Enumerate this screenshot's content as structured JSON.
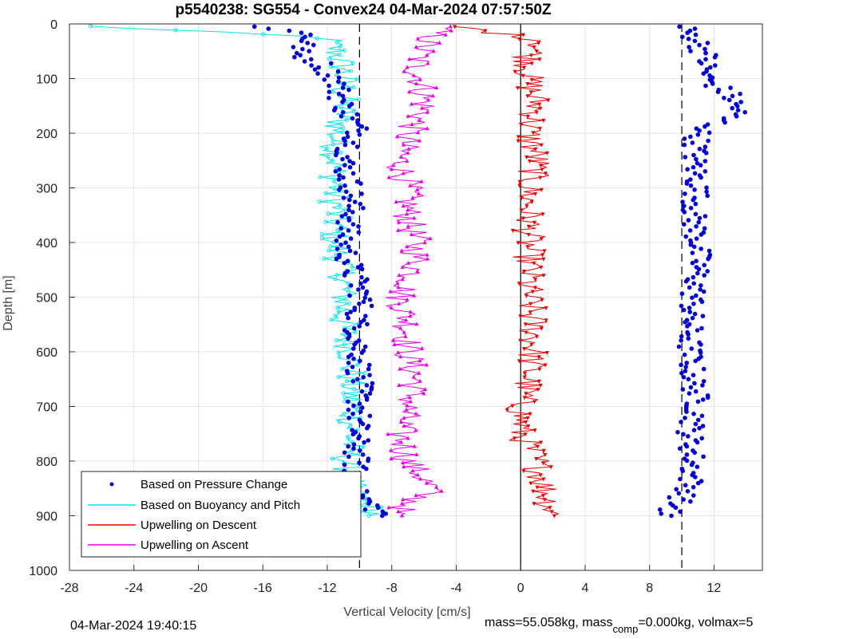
{
  "page": {
    "timestamp": "04-Mar-2024 19:40:15",
    "mass_prefix": "mass=55.058kg, mass",
    "mass_sub": "comp",
    "mass_suffix": "=0.000kg, volmax=5"
  },
  "chart_data": {
    "type": "line",
    "title": "p5540238: SG554 - Convex24 04-Mar-2024 07:57:50Z",
    "xlabel": "Vertical Velocity [cm/s]",
    "ylabel": "Depth [m]",
    "xlim": [
      -28,
      15
    ],
    "ylim": [
      0,
      1000
    ],
    "y_reversed": true,
    "grid": true,
    "xticks": [
      -28,
      -24,
      -20,
      -16,
      -12,
      -8,
      -4,
      0,
      4,
      8,
      12
    ],
    "yticks": [
      0,
      100,
      200,
      300,
      400,
      500,
      600,
      700,
      800,
      900,
      1000
    ],
    "legend_position": "bottom-left",
    "legend": [
      {
        "label": "Based on Pressure Change",
        "color": "#0000dd",
        "style": "dot"
      },
      {
        "label": "Based on Buoyancy and Pitch",
        "color": "#00e5ee",
        "style": "line"
      },
      {
        "label": "Upwelling on Descent",
        "color": "#ee0000",
        "style": "line"
      },
      {
        "label": "Upwelling on Ascent",
        "color": "#ee00ee",
        "style": "line"
      }
    ],
    "reference_lines": [
      {
        "x": -10,
        "style": "dashed"
      },
      {
        "x": 0,
        "style": "solid"
      },
      {
        "x": 10,
        "style": "dashed"
      }
    ],
    "series": [
      {
        "name": "Based on Pressure Change",
        "color": "#0000dd",
        "marker": "dot",
        "profiles": [
          {
            "depth": [
              5,
              20,
              40,
              55,
              70,
              100,
              150,
              200,
              250,
              300,
              350,
              400,
              450,
              500,
              550,
              600,
              650,
              700,
              750,
              800,
              850,
              900
            ],
            "velocity": [
              -16,
              -13,
              -13.5,
              -14,
              -12.5,
              -11.5,
              -11,
              -10,
              -11,
              -10.5,
              -10.5,
              -11,
              -10.5,
              -9.8,
              -10.2,
              -10,
              -10,
              -10,
              -10.2,
              -10.2,
              -10.5,
              -8.5
            ]
          },
          {
            "depth": [
              5,
              30,
              60,
              100,
              130,
              160,
              200,
              250,
              300,
              350,
              400,
              450,
              500,
              550,
              600,
              650,
              700,
              750,
              800,
              850,
              900
            ],
            "velocity": [
              10,
              11,
              11.5,
              11.5,
              13,
              13.5,
              11,
              10.8,
              11,
              10.7,
              11,
              11,
              10.7,
              10.5,
              10.5,
              10.7,
              11,
              10.5,
              10.7,
              10.5,
              9
            ]
          }
        ]
      },
      {
        "name": "Based on Buoyancy and Pitch",
        "color": "#00e5ee",
        "marker": "circle",
        "profiles": [
          {
            "depth": [
              4,
              25,
              50,
              80,
              120,
              160,
              200,
              250,
              300,
              350,
              400,
              450,
              500,
              550,
              600,
              650,
              700,
              750,
              800,
              850,
              900
            ],
            "velocity": [
              -27,
              -12,
              -11.5,
              -11,
              -11,
              -11,
              -11.5,
              -11.5,
              -11.5,
              -11.5,
              -11.5,
              -11,
              -11,
              -11,
              -10.5,
              -10.5,
              -10.5,
              -10.5,
              -10.8,
              -10.5,
              -9
            ]
          }
        ]
      },
      {
        "name": "Upwelling on Descent",
        "color": "#ee0000",
        "marker": "triangle-down",
        "profiles": [
          {
            "depth": [
              5,
              30,
              60,
              100,
              150,
              200,
              250,
              300,
              350,
              400,
              450,
              500,
              550,
              600,
              650,
              700,
              750,
              800,
              850,
              900
            ],
            "velocity": [
              -4,
              1.5,
              0.5,
              0.5,
              1,
              0.5,
              1,
              0.5,
              0.5,
              0.5,
              0.5,
              0.5,
              0.8,
              0.8,
              0.5,
              0,
              0,
              1,
              1.5,
              2
            ]
          }
        ]
      },
      {
        "name": "Upwelling on Ascent",
        "color": "#ee00ee",
        "marker": "triangle-up",
        "profiles": [
          {
            "depth": [
              5,
              40,
              80,
              120,
              160,
              200,
              250,
              300,
              350,
              400,
              450,
              500,
              550,
              600,
              650,
              700,
              750,
              800,
              850,
              900
            ],
            "velocity": [
              -5,
              -6,
              -6.5,
              -6,
              -6,
              -7,
              -7.5,
              -7,
              -7,
              -6.5,
              -6.5,
              -7.5,
              -7,
              -7,
              -6.5,
              -7,
              -7.5,
              -7,
              -5.5,
              -8
            ]
          }
        ]
      }
    ]
  }
}
